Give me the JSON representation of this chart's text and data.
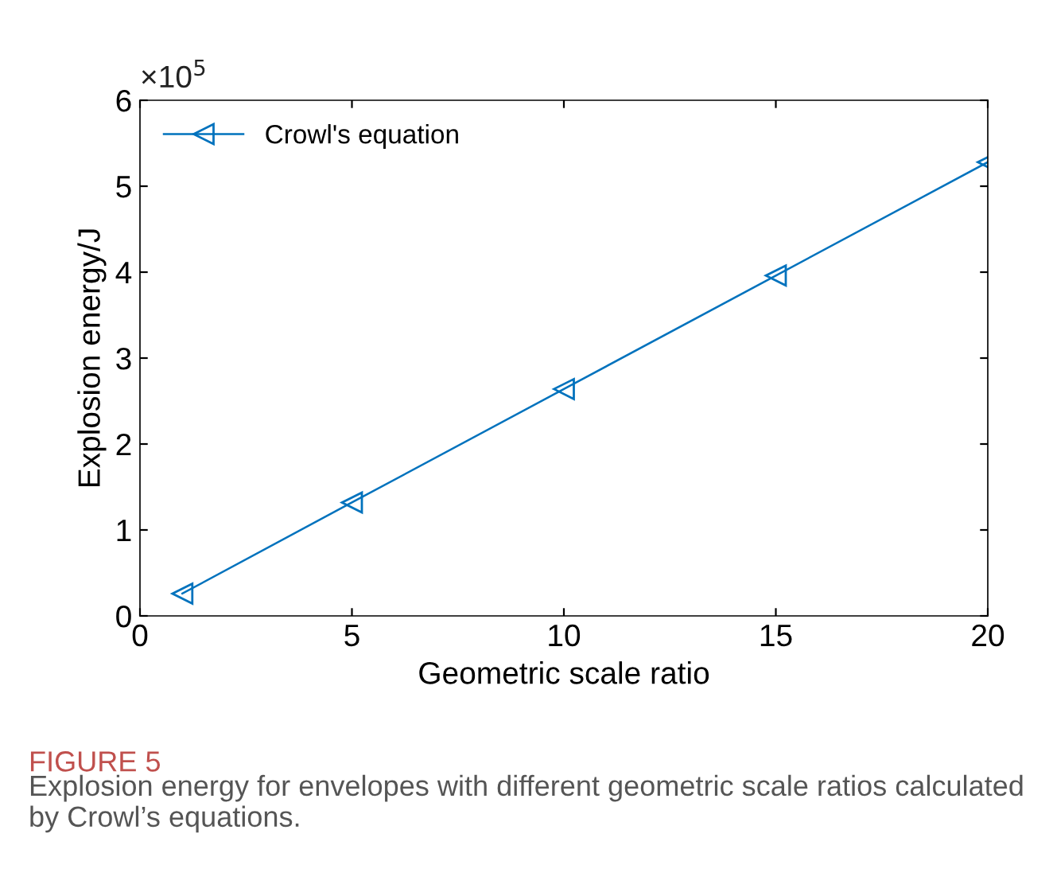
{
  "chart_data": {
    "type": "line",
    "xlabel": "Geometric scale ratio",
    "ylabel": "Explosion energy/J",
    "x": [
      1,
      5,
      10,
      15,
      20
    ],
    "series": [
      {
        "name": "Crowl's equation",
        "color": "#0072bd",
        "values": [
          0.26,
          1.32,
          2.64,
          3.96,
          5.28
        ]
      }
    ],
    "marker": "triangle",
    "legend": "top left",
    "grid": false,
    "xlim": [
      0,
      20
    ],
    "xticks": [
      0,
      5,
      10,
      15,
      20
    ],
    "ylim": [
      0,
      6
    ],
    "yticks": [
      0,
      1,
      2,
      3,
      4,
      5,
      6
    ],
    "annotations": [
      "×10$^{5}$",
      "FIGURE 5",
      "Explosion energy for envelopes with different geometric scale ratios calculated by Crowl’s equations."
    ]
  }
}
